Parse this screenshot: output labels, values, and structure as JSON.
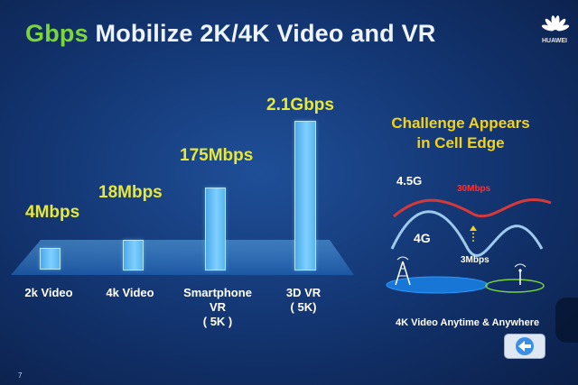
{
  "slide": {
    "title_highlight": "Gbps",
    "title_rest": "Mobilize 2K/4K Video and VR",
    "logo_text": "HUAWEI",
    "page_number": "7"
  },
  "bars": [
    {
      "label": "4Mbps",
      "category_lines": [
        "2k Video"
      ],
      "value": "4Mbps"
    },
    {
      "label": "18Mbps",
      "category_lines": [
        "4k Video"
      ],
      "value": "18Mbps"
    },
    {
      "label": "175Mbps",
      "category_lines": [
        "Smartphone",
        "VR",
        "( 5K )"
      ],
      "value": "175Mbps"
    },
    {
      "label": "2.1Gbps",
      "category_lines": [
        "3D VR",
        "( 5K)"
      ],
      "value": "2.1Gbps"
    }
  ],
  "challenge": {
    "line1": "Challenge Appears",
    "line2": "in Cell Edge",
    "label_45g": "4.5G",
    "label_4g": "4G",
    "label_30": "30Mbps",
    "label_3": "3Mbps",
    "caption": "4K Video Anytime & Anywhere"
  },
  "colors": {
    "highlight_green": "#7ad63b",
    "value_yellow": "#e8e838",
    "challenge_yellow": "#f3d21a",
    "curve_red": "#d43a3a",
    "curve_blue": "#9ec8ec",
    "bar_blue": "#6cc4f8"
  },
  "icons": [
    "huawei-logo-icon",
    "cell-tower-icon",
    "wifi-antenna-icon",
    "up-arrow-icon",
    "back-arrow-icon"
  ]
}
